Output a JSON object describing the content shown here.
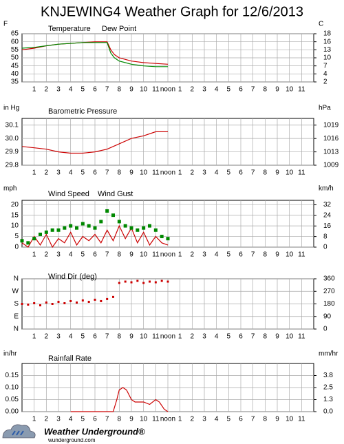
{
  "title": "KNJEWING4 Weather Graph for 12/6/2013",
  "footer": {
    "brand": "Weather Underground®",
    "url": "wunderground.com"
  },
  "chart_data": [
    {
      "type": "line",
      "y_unit": "F",
      "y2_unit": "C",
      "x": [
        0,
        1,
        2,
        3,
        4,
        5,
        6,
        7,
        7.3,
        7.6,
        8,
        8.5,
        9,
        9.5,
        10,
        11,
        12
      ],
      "xlim": [
        0,
        24
      ],
      "xticks": [
        1,
        2,
        3,
        4,
        5,
        6,
        7,
        8,
        9,
        10,
        11,
        {
          "value": 12,
          "label": "noon"
        },
        {
          "value": 13,
          "label": "1"
        },
        {
          "value": 14,
          "label": "2"
        },
        {
          "value": 15,
          "label": "3"
        },
        {
          "value": 16,
          "label": "4"
        },
        {
          "value": 17,
          "label": "5"
        },
        {
          "value": 18,
          "label": "6"
        },
        {
          "value": 19,
          "label": "7"
        },
        {
          "value": 20,
          "label": "8"
        },
        {
          "value": 21,
          "label": "9"
        },
        {
          "value": 22,
          "label": "10"
        },
        {
          "value": 23,
          "label": "11"
        }
      ],
      "ylim": [
        35,
        65
      ],
      "yticks": [
        35,
        40,
        45,
        50,
        55,
        60,
        65
      ],
      "y2lim": [
        1.67,
        18.33
      ],
      "y2ticks": [
        {
          "value": 1.67,
          "label": "2"
        },
        {
          "value": 4.44,
          "label": "4"
        },
        {
          "value": 7.22,
          "label": "7"
        },
        10,
        {
          "value": 12.78,
          "label": "13"
        },
        {
          "value": 15.56,
          "label": "16"
        },
        {
          "value": 18.33,
          "label": "18"
        }
      ],
      "grid": true,
      "series": [
        {
          "name": "Temperature",
          "color": "#cc0000",
          "values": [
            55,
            56,
            57.5,
            58.5,
            59,
            59.5,
            60,
            60,
            55,
            52,
            50,
            49,
            48,
            47.5,
            47,
            46.5,
            46
          ]
        },
        {
          "name": "Dew Point",
          "color": "#008800",
          "values": [
            56,
            56.5,
            57.5,
            58.5,
            59,
            59.5,
            59.5,
            59.5,
            53,
            50,
            48,
            47,
            46,
            45.5,
            45,
            44.5,
            44.5
          ]
        }
      ]
    },
    {
      "type": "line",
      "y_unit": "in Hg",
      "y2_unit": "hPa",
      "x": [
        0,
        1,
        2,
        3,
        4,
        5,
        6,
        7,
        8,
        9,
        10,
        11,
        12
      ],
      "xlim": [
        0,
        24
      ],
      "xticks": [
        1,
        2,
        3,
        4,
        5,
        6,
        7,
        8,
        9,
        10,
        11,
        {
          "value": 12,
          "label": "noon"
        },
        {
          "value": 13,
          "label": "1"
        },
        {
          "value": 14,
          "label": "2"
        },
        {
          "value": 15,
          "label": "3"
        },
        {
          "value": 16,
          "label": "4"
        },
        {
          "value": 17,
          "label": "5"
        },
        {
          "value": 18,
          "label": "6"
        },
        {
          "value": 19,
          "label": "7"
        },
        {
          "value": 20,
          "label": "8"
        },
        {
          "value": 21,
          "label": "9"
        },
        {
          "value": 22,
          "label": "10"
        },
        {
          "value": 23,
          "label": "11"
        }
      ],
      "ylim": [
        29.8,
        30.15
      ],
      "yticks": [
        29.8,
        29.9,
        {
          "value": 30.0,
          "label": "30.0"
        },
        30.1
      ],
      "y2lim": [
        1009.14,
        1021.0
      ],
      "y2ticks": [
        {
          "value": 1009.14,
          "label": "1009"
        },
        {
          "value": 1012.52,
          "label": "1013"
        },
        {
          "value": 1015.91,
          "label": "1016"
        },
        {
          "value": 1019.3,
          "label": "1019"
        }
      ],
      "grid": true,
      "series": [
        {
          "name": "Barometric Pressure",
          "color": "#cc0000",
          "values": [
            29.94,
            29.93,
            29.92,
            29.9,
            29.89,
            29.89,
            29.9,
            29.92,
            29.96,
            30.0,
            30.02,
            30.05,
            30.05
          ]
        }
      ]
    },
    {
      "type": "line",
      "y_unit": "mph",
      "y2_unit": "km/h",
      "x": [
        0,
        0.5,
        1,
        1.5,
        2,
        2.5,
        3,
        3.5,
        4,
        4.5,
        5,
        5.5,
        6,
        6.5,
        7,
        7.5,
        8,
        8.5,
        9,
        9.5,
        10,
        10.5,
        11,
        11.5,
        12
      ],
      "xlim": [
        0,
        24
      ],
      "xticks": [
        1,
        2,
        3,
        4,
        5,
        6,
        7,
        8,
        9,
        10,
        11,
        {
          "value": 12,
          "label": "noon"
        },
        {
          "value": 13,
          "label": "1"
        },
        {
          "value": 14,
          "label": "2"
        },
        {
          "value": 15,
          "label": "3"
        },
        {
          "value": 16,
          "label": "4"
        },
        {
          "value": 17,
          "label": "5"
        },
        {
          "value": 18,
          "label": "6"
        },
        {
          "value": 19,
          "label": "7"
        },
        {
          "value": 20,
          "label": "8"
        },
        {
          "value": 21,
          "label": "9"
        },
        {
          "value": 22,
          "label": "10"
        },
        {
          "value": 23,
          "label": "11"
        }
      ],
      "ylim": [
        0,
        22
      ],
      "yticks": [
        0,
        5,
        10,
        15,
        20
      ],
      "y2lim": [
        0,
        35.4
      ],
      "y2ticks": [
        0,
        8,
        16,
        24,
        32
      ],
      "grid": true,
      "series": [
        {
          "name": "Wind Speed",
          "color": "#cc0000",
          "values": [
            2,
            0,
            5,
            1,
            6,
            0,
            4,
            2,
            7,
            1,
            5,
            3,
            6,
            2,
            8,
            3,
            10,
            4,
            9,
            2,
            7,
            1,
            5,
            2,
            1
          ]
        },
        {
          "name": "Wind Gust",
          "color": "#008800",
          "marker": "square",
          "values": [
            3,
            2,
            4,
            6,
            7,
            8,
            8,
            9,
            10,
            9,
            11,
            10,
            9,
            12,
            17,
            15,
            12,
            10,
            9,
            8,
            9,
            10,
            8,
            5,
            4
          ]
        }
      ]
    },
    {
      "type": "scatter",
      "y2_unit": null,
      "x": [
        0,
        0.5,
        1,
        1.5,
        2,
        2.5,
        3,
        3.5,
        4,
        4.5,
        5,
        5.5,
        6,
        6.5,
        7,
        7.5,
        8,
        8.5,
        9,
        9.5,
        10,
        10.5,
        11,
        11.5,
        12
      ],
      "xlim": [
        0,
        24
      ],
      "xticks": [
        1,
        2,
        3,
        4,
        5,
        6,
        7,
        8,
        9,
        10,
        11,
        {
          "value": 12,
          "label": "noon"
        },
        {
          "value": 13,
          "label": "1"
        },
        {
          "value": 14,
          "label": "2"
        },
        {
          "value": 15,
          "label": "3"
        },
        {
          "value": 16,
          "label": "4"
        },
        {
          "value": 17,
          "label": "5"
        },
        {
          "value": 18,
          "label": "6"
        },
        {
          "value": 19,
          "label": "7"
        },
        {
          "value": 20,
          "label": "8"
        },
        {
          "value": 21,
          "label": "9"
        },
        {
          "value": 22,
          "label": "10"
        },
        {
          "value": 23,
          "label": "11"
        }
      ],
      "ylim": [
        0,
        360
      ],
      "yticks": [
        {
          "value": 0,
          "label": "N"
        },
        {
          "value": 90,
          "label": "E"
        },
        {
          "value": 180,
          "label": "S"
        },
        {
          "value": 270,
          "label": "W"
        },
        {
          "value": 360,
          "label": "N"
        }
      ],
      "y2lim": [
        0,
        360
      ],
      "y2ticks": [
        0,
        90,
        180,
        270,
        360
      ],
      "grid": true,
      "series": [
        {
          "name": "Wind Dir (deg)",
          "color": "#cc0000",
          "values": [
            180,
            175,
            185,
            170,
            190,
            180,
            195,
            185,
            200,
            190,
            205,
            195,
            210,
            200,
            215,
            230,
            330,
            340,
            335,
            345,
            330,
            340,
            335,
            345,
            340
          ]
        }
      ]
    },
    {
      "type": "line",
      "y_unit": "in/hr",
      "y2_unit": "mm/hr",
      "x": [
        4,
        7.5,
        7.8,
        8,
        8.3,
        8.6,
        9,
        9.3,
        9.6,
        10,
        10.5,
        11,
        11.3,
        11.7,
        12
      ],
      "xlim": [
        0,
        24
      ],
      "xticks": [
        1,
        2,
        3,
        4,
        5,
        6,
        7,
        8,
        9,
        10,
        11,
        {
          "value": 12,
          "label": "noon"
        },
        {
          "value": 13,
          "label": "1"
        },
        {
          "value": 14,
          "label": "2"
        },
        {
          "value": 15,
          "label": "3"
        },
        {
          "value": 16,
          "label": "4"
        },
        {
          "value": 17,
          "label": "5"
        },
        {
          "value": 18,
          "label": "6"
        },
        {
          "value": 19,
          "label": "7"
        },
        {
          "value": 20,
          "label": "8"
        },
        {
          "value": 21,
          "label": "9"
        },
        {
          "value": 22,
          "label": "10"
        },
        {
          "value": 23,
          "label": "11"
        }
      ],
      "ylim": [
        0,
        0.2
      ],
      "yticks": [
        {
          "value": 0,
          "label": "0.00"
        },
        0.05,
        {
          "value": 0.1,
          "label": "0.10"
        },
        0.15
      ],
      "y2lim": [
        0,
        5.08
      ],
      "y2ticks": [
        {
          "value": 0,
          "label": "0.0"
        },
        {
          "value": 1.27,
          "label": "1.3"
        },
        {
          "value": 2.54,
          "label": "2.5"
        },
        {
          "value": 3.81,
          "label": "3.8"
        }
      ],
      "grid": true,
      "series": [
        {
          "name": "Rainfall Rate",
          "color": "#cc0000",
          "values": [
            0,
            0,
            0.05,
            0.09,
            0.1,
            0.09,
            0.05,
            0.04,
            0.04,
            0.04,
            0.03,
            0.05,
            0.04,
            0.01,
            0
          ]
        }
      ]
    }
  ]
}
